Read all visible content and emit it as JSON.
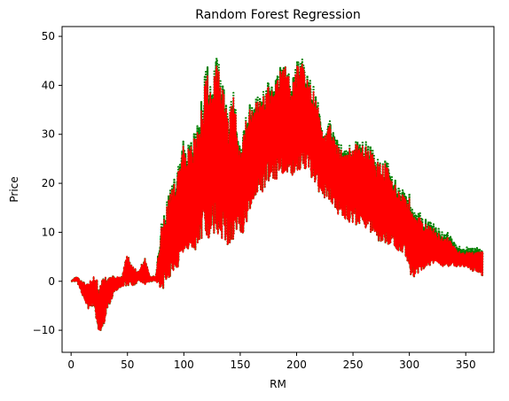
{
  "chart_data": {
    "type": "line",
    "title": "Random Forest Regression",
    "xlabel": "RM",
    "ylabel": "Price",
    "xlim": [
      -8,
      375
    ],
    "ylim": [
      -14.5,
      52
    ],
    "x_ticks": [
      0,
      50,
      100,
      150,
      200,
      250,
      300,
      350
    ],
    "y_ticks": [
      -10,
      0,
      10,
      20,
      30,
      40,
      50
    ],
    "grid": false,
    "legend": "none",
    "series": [
      {
        "style": "dotted",
        "color": "#008000",
        "x": [
          0,
          5,
          10,
          15,
          20,
          25,
          30,
          35,
          40,
          45,
          50,
          55,
          60,
          65,
          70,
          75,
          80,
          85,
          90,
          95,
          100,
          105,
          110,
          115,
          120,
          125,
          130,
          135,
          140,
          145,
          150,
          155,
          160,
          165,
          170,
          175,
          180,
          185,
          190,
          195,
          200,
          205,
          210,
          215,
          220,
          225,
          230,
          235,
          240,
          245,
          250,
          255,
          260,
          265,
          270,
          275,
          280,
          285,
          290,
          295,
          300,
          305,
          310,
          315,
          320,
          325,
          330,
          335,
          340,
          345,
          350,
          355,
          360,
          365
        ],
        "y_low": [
          0,
          0,
          -3,
          -6,
          -5,
          -12,
          -8,
          -4,
          -2,
          -1,
          -1,
          -1,
          0,
          -1,
          0,
          0,
          -2,
          0,
          2,
          3,
          5,
          6,
          6,
          8,
          8,
          10,
          8,
          8,
          7,
          9,
          9,
          11,
          16,
          18,
          18,
          20,
          20,
          22,
          22,
          21,
          22,
          23,
          22,
          20,
          18,
          17,
          16,
          14,
          13,
          12,
          12,
          11,
          11,
          10,
          8,
          8,
          7,
          7,
          6,
          5,
          1,
          1,
          2,
          3,
          3,
          3,
          3,
          3,
          3,
          3,
          3,
          2,
          2,
          1
        ],
        "y_high": [
          0,
          1,
          0,
          0,
          1,
          0,
          1,
          1,
          1,
          1,
          6,
          3,
          2,
          5,
          1,
          1,
          12,
          17,
          20,
          24,
          30,
          28,
          31,
          36,
          45,
          40,
          48,
          42,
          35,
          40,
          27,
          34,
          37,
          38,
          39,
          41,
          40,
          44,
          44,
          42,
          45,
          46,
          42,
          40,
          36,
          30,
          33,
          29,
          28,
          28,
          28,
          29,
          29,
          28,
          26,
          24,
          25,
          22,
          20,
          19,
          18,
          14,
          14,
          13,
          12,
          11,
          10,
          10,
          8,
          7,
          7,
          7,
          7,
          6
        ]
      },
      {
        "style": "solid",
        "color": "#ff0000",
        "x": [
          0,
          5,
          10,
          15,
          20,
          25,
          30,
          35,
          40,
          45,
          50,
          55,
          60,
          65,
          70,
          75,
          80,
          85,
          90,
          95,
          100,
          105,
          110,
          115,
          120,
          125,
          130,
          135,
          140,
          145,
          150,
          155,
          160,
          165,
          170,
          175,
          180,
          185,
          190,
          195,
          200,
          205,
          210,
          215,
          220,
          225,
          230,
          235,
          240,
          245,
          250,
          255,
          260,
          265,
          270,
          275,
          280,
          285,
          290,
          295,
          300,
          305,
          310,
          315,
          320,
          325,
          330,
          335,
          340,
          345,
          350,
          355,
          360,
          365
        ],
        "y_low": [
          0,
          0,
          -3,
          -6,
          -5,
          -12,
          -8,
          -4,
          -2,
          -1,
          -1,
          -1,
          0,
          -1,
          0,
          0,
          -2,
          0,
          2,
          3,
          5,
          6,
          6,
          8,
          8,
          10,
          8,
          8,
          7,
          9,
          9,
          11,
          16,
          18,
          18,
          20,
          20,
          22,
          22,
          21,
          22,
          23,
          22,
          20,
          18,
          17,
          16,
          14,
          13,
          12,
          12,
          11,
          11,
          10,
          8,
          8,
          7,
          7,
          6,
          5,
          1,
          1,
          2,
          3,
          3,
          3,
          3,
          3,
          3,
          3,
          3,
          2,
          2,
          1
        ],
        "y_high": [
          0,
          1,
          0,
          0,
          1,
          0,
          1,
          1,
          1,
          1,
          6,
          3,
          2,
          5,
          1,
          1,
          11,
          16,
          19,
          23,
          29,
          27,
          30,
          34,
          43,
          39,
          46,
          41,
          34,
          39,
          26,
          33,
          36,
          37,
          38,
          40,
          39,
          43,
          44,
          41,
          44,
          45,
          41,
          39,
          35,
          30,
          32,
          28,
          27,
          27,
          28,
          28,
          28,
          27,
          25,
          24,
          24,
          21,
          19,
          18,
          17,
          13,
          13,
          12,
          11,
          10,
          9,
          9,
          7,
          6,
          6,
          6,
          6,
          6
        ]
      }
    ]
  }
}
